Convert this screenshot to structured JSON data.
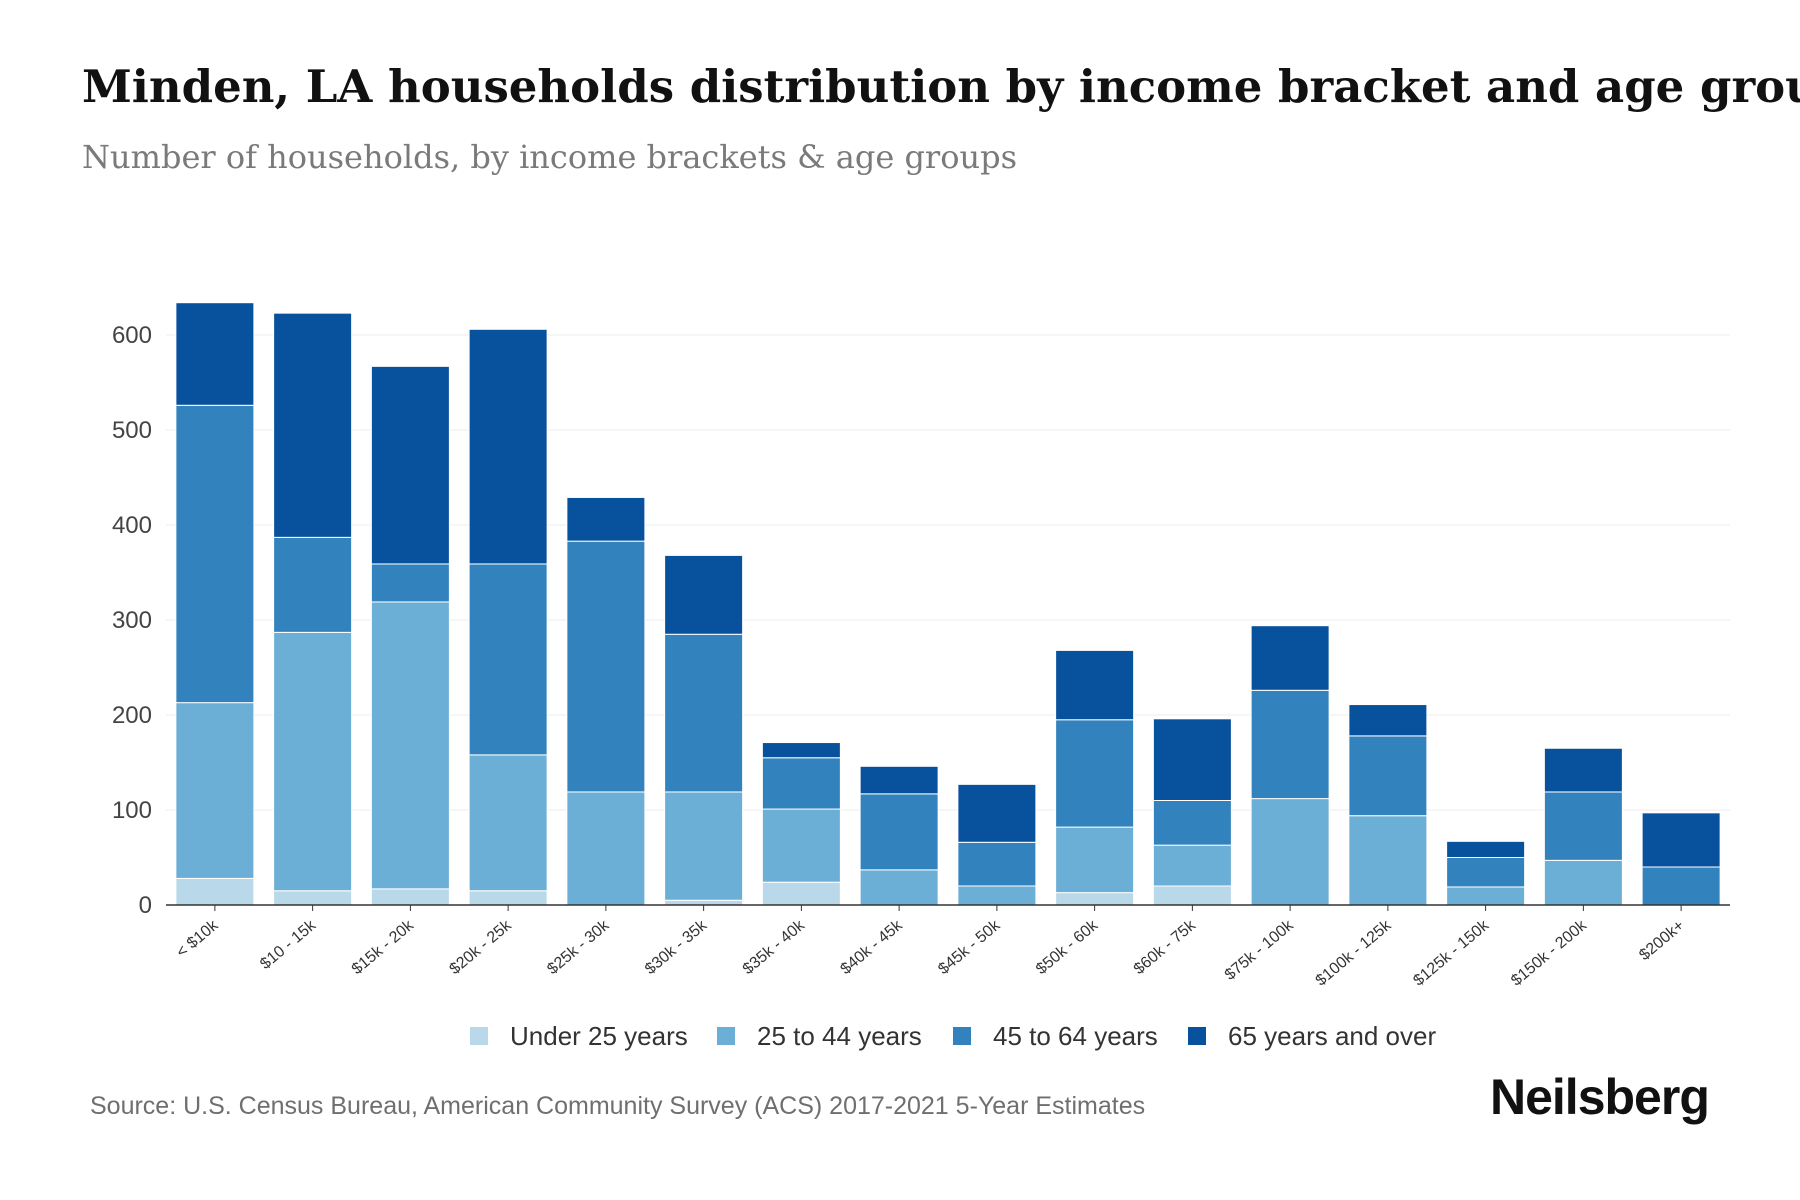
{
  "chart_data": {
    "type": "bar",
    "stacked": true,
    "title": "Minden, LA households distribution by income bracket and age group",
    "subtitle": "Number of households, by income brackets & age groups",
    "xlabel": "",
    "ylabel": "",
    "ylim": [
      0,
      640
    ],
    "yticks": [
      0,
      100,
      200,
      300,
      400,
      500,
      600
    ],
    "grid": true,
    "legend_position": "bottom-center",
    "categories": [
      "< $10k",
      "$10 - 15k",
      "$15k - 20k",
      "$20k - 25k",
      "$25k - 30k",
      "$30k - 35k",
      "$35k - 40k",
      "$40k - 45k",
      "$45k - 50k",
      "$50k - 60k",
      "$60k - 75k",
      "$75k - 100k",
      "$100k - 125k",
      "$125k - 150k",
      "$150k - 200k",
      "$200k+"
    ],
    "series": [
      {
        "name": "Under 25 years",
        "color": "#b9d9ea",
        "values": [
          28,
          15,
          17,
          15,
          0,
          5,
          24,
          0,
          0,
          13,
          20,
          0,
          0,
          0,
          0,
          0
        ]
      },
      {
        "name": "25 to 44 years",
        "color": "#6baed6",
        "values": [
          185,
          272,
          302,
          143,
          119,
          114,
          77,
          37,
          20,
          69,
          43,
          112,
          94,
          19,
          47,
          0
        ]
      },
      {
        "name": "45 to 64 years",
        "color": "#3182bd",
        "values": [
          313,
          100,
          40,
          201,
          264,
          166,
          54,
          80,
          46,
          113,
          47,
          114,
          84,
          31,
          72,
          40
        ]
      },
      {
        "name": "65 years and over",
        "color": "#08519c",
        "values": [
          108,
          236,
          208,
          247,
          46,
          83,
          16,
          29,
          61,
          73,
          86,
          68,
          33,
          17,
          46,
          57
        ]
      }
    ]
  },
  "source": "Source: U.S. Census Bureau, American Community Survey (ACS) 2017-2021 5-Year Estimates",
  "brand": "Neilsberg"
}
